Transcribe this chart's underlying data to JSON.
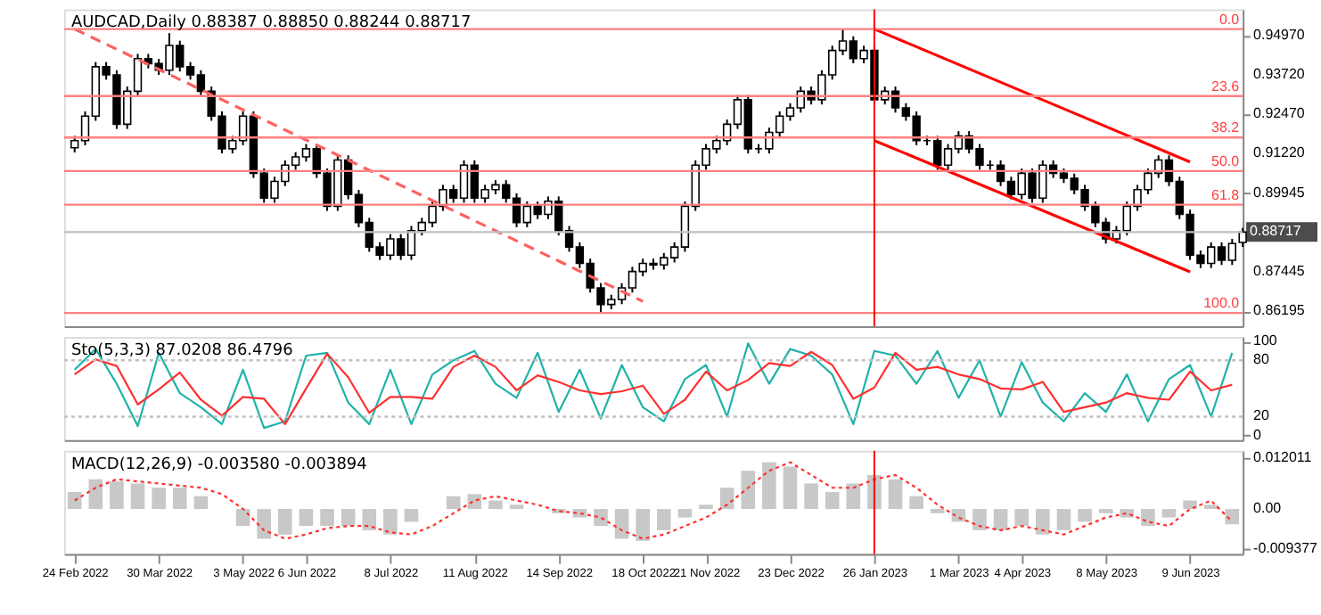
{
  "chart_data": [
    {
      "type": "candlestick",
      "title": "AUDCAD,Daily  0.88387 0.88850 0.88244 0.88717",
      "color": "#000000",
      "tick_labels": "y",
      "grid": false,
      "legend": false,
      "annotations": [
        {
          "text": "0.0",
          "y": 0.9518
        },
        {
          "text": "23.6",
          "y": 0.9305
        },
        {
          "text": "38.2",
          "y": 0.9173
        },
        {
          "text": "50.0",
          "y": 0.9066
        },
        {
          "text": "61.8",
          "y": 0.8959
        },
        {
          "text": "100.0",
          "y": 0.8614
        }
      ],
      "categories": [
        "24 Feb 2022",
        null,
        null,
        null,
        null,
        null,
        null,
        null,
        "30 Mar 2022",
        null,
        null,
        null,
        null,
        null,
        null,
        null,
        "3 May 2022",
        null,
        null,
        null,
        null,
        null,
        "6 Jun 2022",
        null,
        null,
        null,
        null,
        null,
        null,
        null,
        "8 Jul 2022",
        null,
        null,
        null,
        null,
        null,
        null,
        null,
        "11 Aug 2022",
        null,
        null,
        null,
        null,
        null,
        null,
        null,
        "14 Sep 2022",
        null,
        null,
        null,
        null,
        null,
        null,
        null,
        "18 Oct 2022",
        null,
        null,
        null,
        null,
        null,
        "21 Nov 2022",
        null,
        null,
        null,
        null,
        null,
        null,
        null,
        "23 Dec 2022",
        null,
        null,
        null,
        null,
        null,
        null,
        null,
        "26 Jan 2023",
        null,
        null,
        null,
        null,
        null,
        null,
        null,
        "1 Mar 2023",
        null,
        null,
        null,
        null,
        null,
        "4 Apr 2023",
        null,
        null,
        null,
        null,
        null,
        null,
        null,
        "8 May 2023",
        null,
        null,
        null,
        null,
        null,
        null,
        null,
        "9 Jun 2023",
        null,
        null,
        null,
        null,
        null
      ],
      "ohlc": [
        [
          0.914,
          0.9178,
          0.9125,
          0.9163
        ],
        [
          0.9163,
          0.9256,
          0.9148,
          0.9241
        ],
        [
          0.9241,
          0.9413,
          0.9226,
          0.9398
        ],
        [
          0.9398,
          0.9413,
          0.9357,
          0.9372
        ],
        [
          0.9372,
          0.9387,
          0.92,
          0.9215
        ],
        [
          0.9215,
          0.9335,
          0.92,
          0.932
        ],
        [
          0.932,
          0.9439,
          0.9305,
          0.9424
        ],
        [
          0.9424,
          0.9439,
          0.9393,
          0.9408
        ],
        [
          0.9408,
          0.9423,
          0.9372,
          0.9387
        ],
        [
          0.9387,
          0.9505,
          0.9372,
          0.9466
        ],
        [
          0.9466,
          0.9481,
          0.9383,
          0.9398
        ],
        [
          0.9398,
          0.9413,
          0.9357,
          0.9372
        ],
        [
          0.9372,
          0.9387,
          0.9305,
          0.932
        ],
        [
          0.932,
          0.9335,
          0.9226,
          0.9241
        ],
        [
          0.9241,
          0.9256,
          0.9122,
          0.9137
        ],
        [
          0.9137,
          0.9178,
          0.9122,
          0.9163
        ],
        [
          0.9163,
          0.9256,
          0.9148,
          0.9241
        ],
        [
          0.9241,
          0.9256,
          0.9044,
          0.9059
        ],
        [
          0.9059,
          0.9074,
          0.8965,
          0.898
        ],
        [
          0.898,
          0.9048,
          0.8965,
          0.9033
        ],
        [
          0.9033,
          0.91,
          0.9018,
          0.9085
        ],
        [
          0.9085,
          0.9126,
          0.907,
          0.9111
        ],
        [
          0.9111,
          0.9152,
          0.9096,
          0.9137
        ],
        [
          0.9137,
          0.9152,
          0.9044,
          0.9059
        ],
        [
          0.9059,
          0.9074,
          0.8939,
          0.8954
        ],
        [
          0.8954,
          0.9116,
          0.8939,
          0.9101
        ],
        [
          0.9101,
          0.9116,
          0.8976,
          0.8991
        ],
        [
          0.8991,
          0.9006,
          0.8887,
          0.8902
        ],
        [
          0.8902,
          0.8917,
          0.8809,
          0.8824
        ],
        [
          0.8824,
          0.8839,
          0.8783,
          0.8798
        ],
        [
          0.8798,
          0.8865,
          0.8783,
          0.885
        ],
        [
          0.885,
          0.8865,
          0.8783,
          0.8798
        ],
        [
          0.8798,
          0.8891,
          0.8783,
          0.8876
        ],
        [
          0.8876,
          0.8917,
          0.8861,
          0.8902
        ],
        [
          0.8902,
          0.8969,
          0.8887,
          0.8954
        ],
        [
          0.8954,
          0.9022,
          0.8939,
          0.9007
        ],
        [
          0.9007,
          0.9022,
          0.8965,
          0.898
        ],
        [
          0.898,
          0.91,
          0.8965,
          0.9085
        ],
        [
          0.9085,
          0.91,
          0.8965,
          0.898
        ],
        [
          0.898,
          0.9022,
          0.8965,
          0.9007
        ],
        [
          0.9007,
          0.9037,
          0.8992,
          0.9022
        ],
        [
          0.9022,
          0.9037,
          0.8965,
          0.898
        ],
        [
          0.898,
          0.8995,
          0.8887,
          0.8902
        ],
        [
          0.8902,
          0.8969,
          0.8887,
          0.8954
        ],
        [
          0.8954,
          0.8969,
          0.8913,
          0.8928
        ],
        [
          0.8928,
          0.8985,
          0.8913,
          0.897
        ],
        [
          0.897,
          0.8985,
          0.8861,
          0.8876
        ],
        [
          0.8876,
          0.8891,
          0.8809,
          0.8824
        ],
        [
          0.8824,
          0.8839,
          0.8757,
          0.8772
        ],
        [
          0.8772,
          0.8787,
          0.8679,
          0.8694
        ],
        [
          0.8694,
          0.8709,
          0.8614,
          0.8641
        ],
        [
          0.8641,
          0.8672,
          0.8626,
          0.8657
        ],
        [
          0.8657,
          0.8709,
          0.8642,
          0.8694
        ],
        [
          0.8694,
          0.8761,
          0.8679,
          0.8746
        ],
        [
          0.8746,
          0.8787,
          0.8731,
          0.8772
        ],
        [
          0.8772,
          0.8787,
          0.8752,
          0.8767
        ],
        [
          0.8767,
          0.8805,
          0.8752,
          0.879
        ],
        [
          0.879,
          0.8839,
          0.8775,
          0.8824
        ],
        [
          0.8824,
          0.8969,
          0.8809,
          0.8954
        ],
        [
          0.8954,
          0.91,
          0.8939,
          0.9085
        ],
        [
          0.9085,
          0.9152,
          0.907,
          0.9137
        ],
        [
          0.9137,
          0.9178,
          0.9122,
          0.9163
        ],
        [
          0.9163,
          0.923,
          0.9148,
          0.9215
        ],
        [
          0.9215,
          0.9308,
          0.92,
          0.9293
        ],
        [
          0.9293,
          0.9308,
          0.9122,
          0.9137
        ],
        [
          0.9137,
          0.9152,
          0.9122,
          0.9137
        ],
        [
          0.9137,
          0.9204,
          0.9122,
          0.9189
        ],
        [
          0.9189,
          0.9256,
          0.9174,
          0.9241
        ],
        [
          0.9241,
          0.9282,
          0.9226,
          0.9267
        ],
        [
          0.9267,
          0.9335,
          0.9252,
          0.932
        ],
        [
          0.932,
          0.9335,
          0.9278,
          0.9293
        ],
        [
          0.9293,
          0.9387,
          0.9278,
          0.9372
        ],
        [
          0.9372,
          0.9465,
          0.9357,
          0.945
        ],
        [
          0.945,
          0.9518,
          0.9435,
          0.948
        ],
        [
          0.948,
          0.9495,
          0.9409,
          0.9424
        ],
        [
          0.9424,
          0.9465,
          0.9409,
          0.945
        ],
        [
          0.945,
          0.9465,
          0.9278,
          0.9293
        ],
        [
          0.9293,
          0.9335,
          0.9278,
          0.932
        ],
        [
          0.932,
          0.9335,
          0.9252,
          0.9267
        ],
        [
          0.9267,
          0.9282,
          0.9226,
          0.9241
        ],
        [
          0.9241,
          0.9256,
          0.9148,
          0.9163
        ],
        [
          0.9163,
          0.9178,
          0.9148,
          0.9163
        ],
        [
          0.9163,
          0.9178,
          0.907,
          0.9085
        ],
        [
          0.9085,
          0.9152,
          0.907,
          0.9137
        ],
        [
          0.9137,
          0.9193,
          0.9122,
          0.9178
        ],
        [
          0.9178,
          0.9193,
          0.9122,
          0.9137
        ],
        [
          0.9137,
          0.9152,
          0.907,
          0.9085
        ],
        [
          0.9085,
          0.91,
          0.907,
          0.9085
        ],
        [
          0.9085,
          0.91,
          0.9018,
          0.9033
        ],
        [
          0.9033,
          0.9048,
          0.8976,
          0.8991
        ],
        [
          0.8991,
          0.9074,
          0.8976,
          0.9059
        ],
        [
          0.9059,
          0.9074,
          0.8965,
          0.898
        ],
        [
          0.898,
          0.91,
          0.8965,
          0.9085
        ],
        [
          0.9085,
          0.91,
          0.9044,
          0.9059
        ],
        [
          0.9059,
          0.9074,
          0.9028,
          0.9043
        ],
        [
          0.9043,
          0.9058,
          0.8992,
          0.9007
        ],
        [
          0.9007,
          0.9022,
          0.8939,
          0.8954
        ],
        [
          0.8954,
          0.8969,
          0.8887,
          0.8902
        ],
        [
          0.8902,
          0.8917,
          0.8835,
          0.885
        ],
        [
          0.885,
          0.8891,
          0.8835,
          0.8876
        ],
        [
          0.8876,
          0.8969,
          0.8861,
          0.8954
        ],
        [
          0.8954,
          0.9022,
          0.8939,
          0.9007
        ],
        [
          0.9007,
          0.9074,
          0.8992,
          0.9059
        ],
        [
          0.9059,
          0.9116,
          0.9044,
          0.9101
        ],
        [
          0.9101,
          0.9116,
          0.9018,
          0.9033
        ],
        [
          0.9033,
          0.9048,
          0.8913,
          0.8928
        ],
        [
          0.8928,
          0.8943,
          0.8783,
          0.8798
        ],
        [
          0.8798,
          0.8813,
          0.8757,
          0.8772
        ],
        [
          0.8772,
          0.8839,
          0.8757,
          0.8824
        ],
        [
          0.8824,
          0.8839,
          0.8767,
          0.8782
        ],
        [
          0.8782,
          0.885,
          0.8767,
          0.8835
        ],
        [
          0.88387,
          0.8885,
          0.88244,
          0.88717
        ]
      ],
      "ylim": [
        0.8572,
        0.9581
      ],
      "yticks": [
        {
          "value": 0.9497,
          "label": "0.94970"
        },
        {
          "value": 0.9372,
          "label": "0.93720"
        },
        {
          "value": 0.9247,
          "label": "0.92470"
        },
        {
          "value": 0.9122,
          "label": "0.91220"
        },
        {
          "value": 0.89945,
          "label": "0.89945"
        },
        {
          "value": 0.87445,
          "label": "0.87445"
        },
        {
          "value": 0.86195,
          "label": "0.86195"
        }
      ],
      "series": [
        {
          "type": "line",
          "color": "#ff0000",
          "line_style": "solid",
          "x": [
            "26 Jan 2023",
            "9 Jun 2023"
          ],
          "values": [
            0.9518,
            0.9095
          ]
        },
        {
          "type": "line",
          "color": "#ff0000",
          "line_style": "solid",
          "x": [
            "26 Jan 2023",
            "9 Jun 2023"
          ],
          "values": [
            0.9163,
            0.8745
          ]
        },
        {
          "type": "line",
          "color": "#ff6060",
          "line_style": "dashed",
          "x": [
            "24 Feb 2022",
            "18 Oct 2022"
          ],
          "values": [
            0.9518,
            0.8651
          ]
        }
      ],
      "ref_lines": [
        {
          "axis": "y",
          "value": 0.9518,
          "color": "#ff8080"
        },
        {
          "axis": "y",
          "value": 0.9305,
          "color": "#ff8080"
        },
        {
          "axis": "y",
          "value": 0.9173,
          "color": "#ff8080"
        },
        {
          "axis": "y",
          "value": 0.9066,
          "color": "#ff8080"
        },
        {
          "axis": "y",
          "value": 0.8959,
          "color": "#ff8080"
        },
        {
          "axis": "y",
          "value": 0.8614,
          "color": "#ff8080"
        },
        {
          "axis": "y",
          "value": 0.88717,
          "label": "0.88717",
          "color": "#c0c0c0"
        },
        {
          "axis": "x",
          "value": "26 Jan 2023",
          "color": "#ff0000"
        }
      ]
    },
    {
      "type": "line",
      "title": "Sto(5,3,3) 87.0208 86.4796",
      "tick_labels": "y",
      "grid": false,
      "legend": false,
      "categories": [
        null,
        null,
        null,
        null,
        null,
        null,
        null,
        null,
        null,
        null,
        null,
        null,
        null,
        null,
        null,
        null,
        null,
        null,
        null,
        null,
        null,
        null,
        null,
        null,
        null,
        null,
        null,
        null,
        null,
        null,
        null,
        null,
        null,
        null,
        null,
        null,
        null,
        null,
        null,
        null,
        null,
        null,
        null,
        null,
        null,
        null,
        null,
        null,
        null,
        null,
        null,
        null,
        null,
        null,
        null,
        null
      ],
      "ylim": [
        -5,
        105
      ],
      "yticks": [
        0,
        20,
        80,
        100
      ],
      "series": [
        {
          "type": "line",
          "color": "#20b2aa",
          "values": [
            70,
            92,
            55,
            10,
            88,
            45,
            30,
            12,
            70,
            8,
            15,
            85,
            88,
            35,
            12,
            70,
            12,
            65,
            80,
            90,
            55,
            40,
            88,
            25,
            70,
            18,
            75,
            30,
            15,
            60,
            75,
            20,
            98,
            55,
            92,
            85,
            65,
            12,
            90,
            85,
            55,
            90,
            40,
            80,
            20,
            78,
            35,
            15,
            45,
            25,
            65,
            15,
            60,
            75,
            20,
            88
          ]
        },
        {
          "type": "line",
          "color": "#ff3030",
          "values": [
            65,
            81,
            74,
            33,
            49,
            67,
            38,
            21,
            41,
            39,
            12,
            50,
            87,
            62,
            24,
            41,
            41,
            39,
            73,
            85,
            73,
            48,
            64,
            57,
            48,
            44,
            47,
            53,
            23,
            38,
            68,
            48,
            59,
            77,
            74,
            89,
            75,
            39,
            51,
            88,
            70,
            73,
            65,
            60,
            50,
            49,
            57,
            25,
            30,
            35,
            45,
            40,
            38,
            68,
            48,
            54
          ]
        }
      ],
      "ref_lines": [
        {
          "axis": "y",
          "value": 20,
          "color": "#c0c0c0",
          "line_style": "dotted"
        },
        {
          "axis": "y",
          "value": 80,
          "color": "#c0c0c0",
          "line_style": "dotted"
        }
      ]
    },
    {
      "type": "bar",
      "title": "MACD(12,26,9) -0.003580 -0.003894",
      "grid": false,
      "legend": false,
      "categories": [
        "24 Feb 2022",
        null,
        null,
        null,
        "30 Mar 2022",
        null,
        null,
        null,
        "3 May 2022",
        null,
        null,
        "6 Jun 2022",
        null,
        null,
        null,
        "8 Jul 2022",
        null,
        null,
        null,
        "11 Aug 2022",
        null,
        null,
        null,
        "14 Sep 2022",
        null,
        null,
        null,
        "18 Oct 2022",
        null,
        null,
        "21 Nov 2022",
        null,
        null,
        null,
        "23 Dec 2022",
        null,
        null,
        null,
        "26 Jan 2023",
        null,
        null,
        null,
        "1 Mar 2023",
        null,
        null,
        "4 Apr 2023",
        null,
        null,
        null,
        "8 May 2023",
        null,
        null,
        null,
        "9 Jun 2023",
        null,
        null
      ],
      "ylim": [
        -0.0106,
        0.0137
      ],
      "yticks": [
        0.012011,
        {
          "value": 0,
          "label": "0.00"
        },
        -0.009377
      ],
      "series": [
        {
          "type": "bar",
          "color": "#c8c8c8",
          "values": [
            0.004,
            0.007,
            0.0065,
            0.006,
            0.005,
            0.005,
            0.003,
            0.0,
            -0.004,
            -0.007,
            -0.006,
            -0.004,
            -0.004,
            -0.004,
            -0.005,
            -0.006,
            -0.003,
            0.0,
            0.003,
            0.0035,
            0.002,
            0.001,
            null,
            -0.001,
            -0.002,
            -0.004,
            -0.007,
            -0.0075,
            -0.005,
            -0.002,
            0.001,
            0.005,
            0.009,
            0.011,
            0.01,
            0.006,
            0.004,
            0.006,
            0.008,
            0.007,
            0.003,
            -0.001,
            -0.003,
            -0.005,
            -0.005,
            -0.004,
            -0.006,
            -0.005,
            -0.003,
            -0.001,
            -0.002,
            -0.004,
            -0.002,
            0.002,
            0.001,
            -0.0036
          ]
        },
        {
          "type": "line",
          "color": "#ff3030",
          "line_style": "dotted",
          "values": [
            0.002,
            0.005,
            0.007,
            0.0065,
            0.006,
            0.0055,
            0.005,
            0.0035,
            0.0,
            -0.005,
            -0.007,
            -0.006,
            -0.0045,
            -0.004,
            -0.004,
            -0.0055,
            -0.006,
            -0.004,
            -0.001,
            0.002,
            0.003,
            0.002,
            0.001,
            -0.0005,
            -0.001,
            -0.002,
            -0.005,
            -0.007,
            -0.006,
            -0.004,
            -0.002,
            0.001,
            0.005,
            0.009,
            0.011,
            0.008,
            0.005,
            0.005,
            0.007,
            0.008,
            0.005,
            0.001,
            -0.002,
            -0.004,
            -0.005,
            -0.004,
            -0.005,
            -0.006,
            -0.004,
            -0.002,
            -0.001,
            -0.003,
            -0.004,
            0.0,
            0.002,
            -0.003
          ]
        }
      ],
      "ref_lines": [
        {
          "axis": "x",
          "value": "26 Jan 2023",
          "color": "#ff0000"
        }
      ]
    }
  ]
}
